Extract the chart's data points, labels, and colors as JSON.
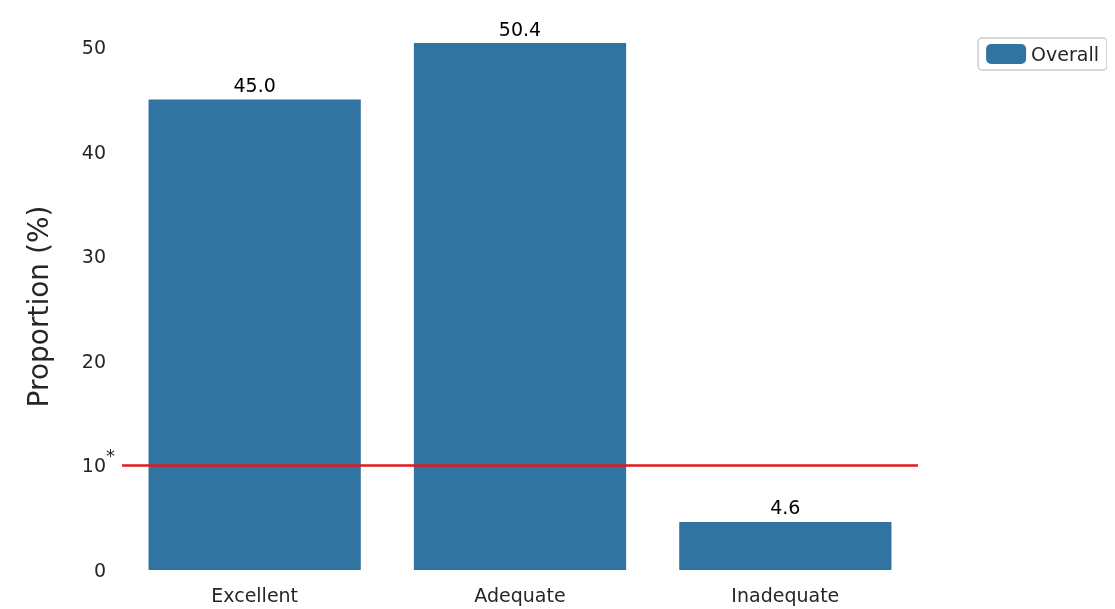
{
  "chart_data": {
    "type": "bar",
    "ylabel": "Proportion (%)",
    "categories": [
      "Excellent",
      "Adequate",
      "Inadequate"
    ],
    "series": [
      {
        "name": "Overall",
        "color": "#3274a1",
        "values": [
          45.0,
          50.4,
          4.6
        ],
        "value_labels": [
          "45.0",
          "50.4",
          "4.6"
        ]
      }
    ],
    "ylim": [
      0,
      50.4
    ],
    "yticks": [
      0,
      10,
      20,
      30,
      40,
      50
    ],
    "grid": false,
    "legend": "top right",
    "ref_lines": [
      {
        "axis": "y",
        "value": 10,
        "label": "*",
        "color": "#e31a1c",
        "line_style": "solid"
      }
    ]
  }
}
